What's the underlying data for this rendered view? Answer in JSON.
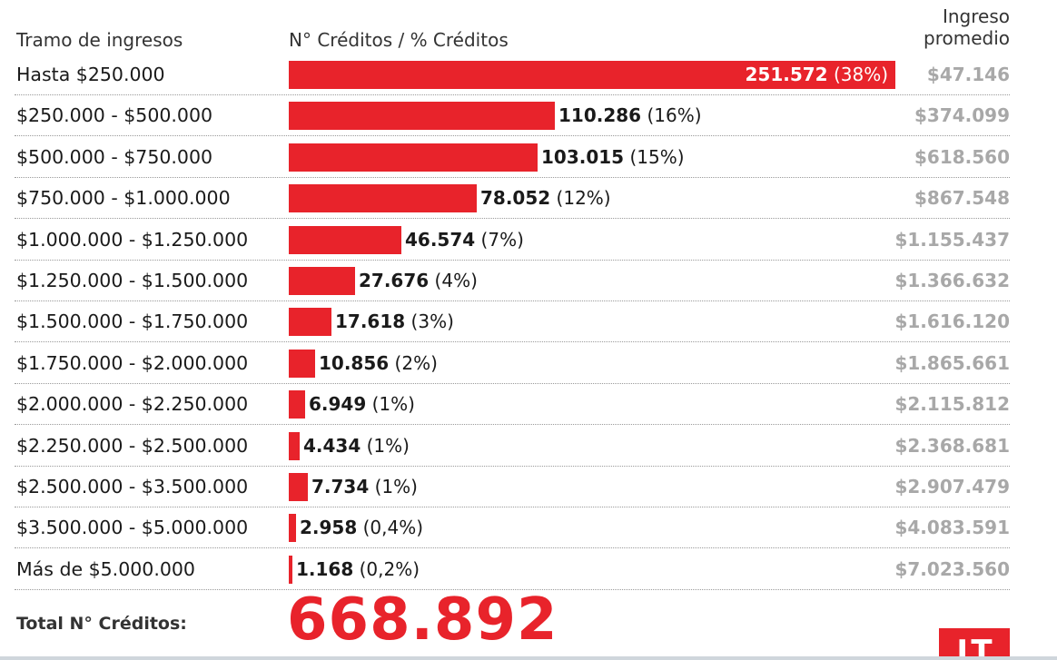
{
  "headers": {
    "tramo": "Tramo de ingresos",
    "creditos": "N° Créditos / % Créditos",
    "ingreso_line1": "Ingreso",
    "ingreso_line2": "promedio"
  },
  "chart_data": {
    "type": "bar",
    "orientation": "horizontal",
    "categories": [
      "Hasta $250.000",
      "$250.000 - $500.000",
      "$500.000 - $750.000",
      "$750.000 - $1.000.000",
      "$1.000.000 - $1.250.000",
      "$1.250.000 - $1.500.000",
      "$1.500.000 - $1.750.000",
      "$1.750.000 - $2.000.000",
      "$2.000.000 - $2.250.000",
      "$2.250.000 - $2.500.000",
      "$2.500.000 - $3.500.000",
      "$3.500.000 - $5.000.000",
      "Más de $5.000.000"
    ],
    "values": [
      251572,
      110286,
      103015,
      78052,
      46574,
      27676,
      17618,
      10856,
      6949,
      4434,
      7734,
      2958,
      1168
    ],
    "value_labels": [
      "251.572",
      "110.286",
      "103.015",
      "78.052",
      "46.574",
      "27.676",
      "17.618",
      "10.856",
      "6.949",
      "4.434",
      "7.734",
      "2.958",
      "1.168"
    ],
    "percent_labels": [
      "(38%)",
      "(16%)",
      "(15%)",
      "(12%)",
      "(7%)",
      "(4%)",
      "(3%)",
      "(2%)",
      "(1%)",
      "(1%)",
      "(1%)",
      "(0,4%)",
      "(0,2%)"
    ],
    "average_income": [
      "$47.146",
      "$374.099",
      "$618.560",
      "$867.548",
      "$1.155.437",
      "$1.366.632",
      "$1.616.120",
      "$1.865.661",
      "$2.115.812",
      "$2.368.681",
      "$2.907.479",
      "$4.083.591",
      "$7.023.560"
    ],
    "bar_color": "#e8232b",
    "xlim": [
      0,
      251572
    ]
  },
  "total": {
    "label": "Total N° Créditos:",
    "value": "668.892"
  },
  "logo": {
    "text": "LT",
    "color": "#e8232b"
  }
}
